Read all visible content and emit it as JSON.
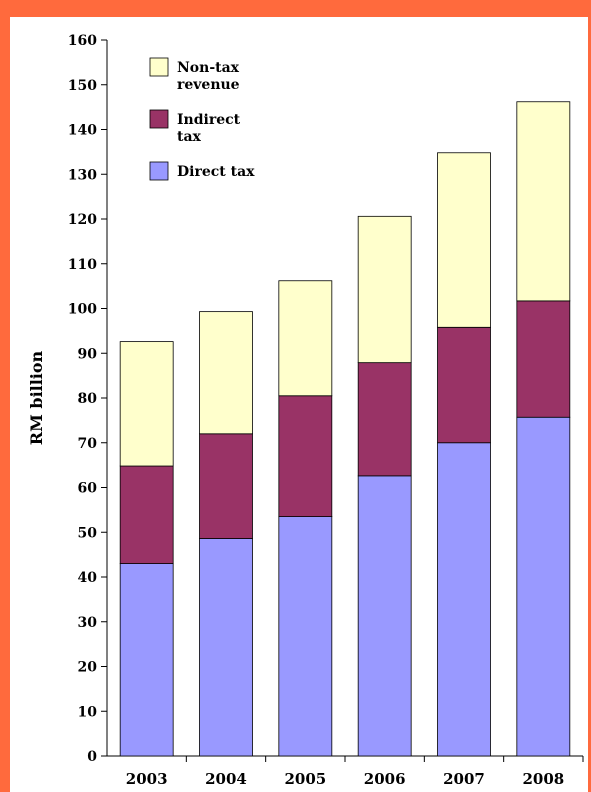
{
  "chart_data": {
    "type": "bar",
    "stacked": true,
    "categories": [
      "2003",
      "2004",
      "2005",
      "2006",
      "2007",
      "2008"
    ],
    "series": [
      {
        "name": "Direct tax",
        "values": [
          43.0,
          48.6,
          53.5,
          62.6,
          70.0,
          75.7
        ],
        "color": "#9999ff"
      },
      {
        "name": "Indirect tax",
        "values": [
          21.8,
          23.4,
          27.0,
          25.3,
          25.8,
          26.0
        ],
        "color": "#993366"
      },
      {
        "name": "Non-tax revenue",
        "values": [
          27.8,
          27.3,
          25.7,
          32.7,
          39.0,
          44.5
        ],
        "color": "#ffffcc"
      }
    ],
    "legend": [
      {
        "lines": [
          "Non-tax",
          "revenue"
        ],
        "color": "#ffffcc"
      },
      {
        "lines": [
          "Indirect",
          "tax"
        ],
        "color": "#993366"
      },
      {
        "lines": [
          "Direct tax"
        ],
        "color": "#9999ff"
      }
    ],
    "ylabel": "RM billion",
    "xlabel": "",
    "ylim": [
      0,
      160
    ],
    "yticks": [
      0,
      10,
      20,
      30,
      40,
      50,
      60,
      70,
      80,
      90,
      100,
      110,
      120,
      130,
      140,
      150,
      160
    ],
    "grid": false,
    "legend_position": "top-left"
  },
  "frame_color": "#ff6a3d"
}
